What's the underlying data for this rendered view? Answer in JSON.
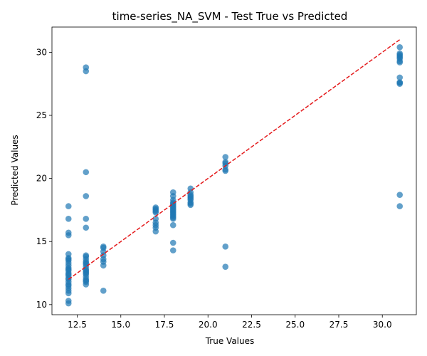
{
  "chart_data": {
    "type": "scatter",
    "title": "time-series_NA_SVM - Test True vs Predicted",
    "xlabel": "True Values",
    "ylabel": "Predicted Values",
    "xlim": [
      11.05,
      31.95
    ],
    "ylim": [
      9.2,
      32.0
    ],
    "xticks": [
      12.5,
      15.0,
      17.5,
      20.0,
      22.5,
      25.0,
      27.5,
      30.0
    ],
    "yticks": [
      10,
      15,
      20,
      25,
      30
    ],
    "grid": false,
    "legend": "none",
    "colors": {
      "points": "#1f77b4",
      "reference_line": "#e41a1c"
    },
    "reference_line": {
      "style": "dashed",
      "from": [
        12,
        12
      ],
      "to": [
        31,
        31
      ]
    },
    "series": [
      {
        "x": [
          12,
          12,
          12,
          12,
          12,
          12,
          12,
          12,
          12,
          12,
          12,
          12,
          12,
          12,
          12,
          12,
          12,
          12,
          12,
          12,
          12,
          12,
          12,
          12,
          12,
          12,
          13,
          13,
          13,
          13,
          13,
          13,
          13,
          13,
          13,
          13,
          13,
          13,
          13,
          13,
          13,
          13,
          13,
          13,
          13,
          13,
          13,
          13,
          13,
          14,
          14,
          14,
          14,
          14,
          14,
          14,
          14,
          17,
          17,
          17,
          17,
          17,
          17,
          17,
          17,
          17,
          17,
          18,
          18,
          18,
          18,
          18,
          18,
          18,
          18,
          18,
          18,
          18,
          18,
          18,
          18,
          18,
          18,
          18,
          18,
          18,
          18,
          19,
          19,
          19,
          19,
          19,
          19,
          19,
          19,
          19,
          19,
          21,
          21,
          21,
          21,
          21,
          21,
          21,
          21,
          31,
          31,
          31,
          31,
          31,
          31,
          31,
          31,
          31,
          31,
          31,
          31,
          31,
          31
        ],
        "y": [
          17.8,
          16.8,
          15.7,
          15.5,
          14.0,
          13.7,
          13.5,
          13.3,
          13.1,
          12.9,
          12.7,
          12.5,
          12.4,
          12.3,
          12.1,
          12.0,
          11.8,
          11.6,
          11.3,
          11.1,
          10.9,
          10.3,
          10.1,
          13.6,
          12.8,
          11.5,
          28.8,
          28.5,
          20.5,
          18.6,
          16.8,
          16.1,
          13.9,
          13.8,
          13.6,
          13.4,
          13.2,
          13.0,
          12.8,
          12.6,
          12.4,
          12.2,
          12.0,
          11.8,
          11.6,
          13.3,
          12.7,
          12.5,
          11.9,
          14.6,
          14.5,
          14.2,
          13.9,
          13.6,
          13.4,
          13.1,
          11.1,
          17.7,
          17.6,
          17.4,
          17.3,
          16.8,
          16.5,
          16.3,
          16.1,
          15.8,
          17.5,
          18.9,
          18.6,
          18.3,
          18.1,
          17.9,
          17.8,
          17.7,
          17.5,
          17.4,
          17.3,
          17.2,
          17.1,
          17.0,
          16.9,
          16.8,
          16.3,
          14.9,
          14.3,
          17.6,
          18.0,
          19.2,
          18.9,
          18.7,
          18.6,
          18.5,
          18.3,
          18.1,
          18.0,
          17.9,
          18.4,
          21.7,
          21.3,
          21.2,
          20.7,
          20.6,
          14.6,
          13.0,
          21.0,
          30.4,
          29.9,
          29.8,
          29.7,
          29.6,
          29.3,
          29.2,
          28.0,
          27.6,
          27.5,
          18.7,
          17.8,
          29.5,
          27.6
        ]
      }
    ]
  }
}
